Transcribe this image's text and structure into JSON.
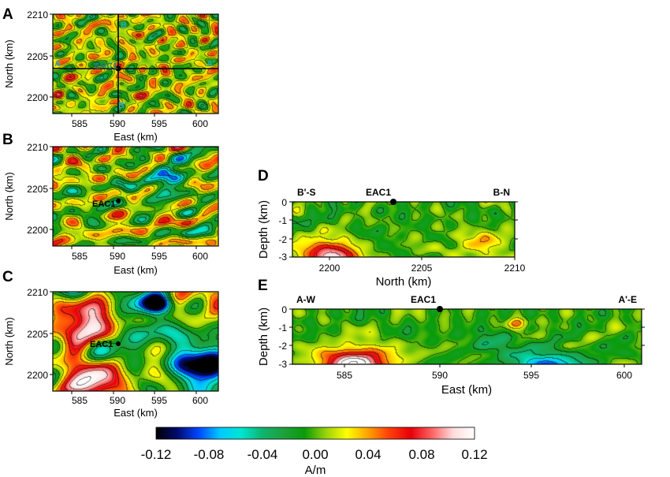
{
  "figure": {
    "panel_labels": [
      "A",
      "B",
      "C",
      "D",
      "E"
    ],
    "colorbar": {
      "unit": "A/m",
      "ticks": [
        "-0.12",
        "-0.08",
        "-0.04",
        "0.00",
        "0.04",
        "0.08",
        "0.12"
      ],
      "colors": [
        "#000000",
        "#000a6e",
        "#0046ff",
        "#00c8ff",
        "#00e6d2",
        "#0fb46e",
        "#1ea03c",
        "#0a9b0a",
        "#9ad20a",
        "#ffff00",
        "#ffa000",
        "#ff3c0a",
        "#e6000a",
        "#ff6464",
        "#ffdcdc",
        "#ffffff"
      ]
    }
  },
  "chart_data": [
    {
      "panel": "A",
      "type": "heatmap",
      "xlabel": "East (km)",
      "ylabel": "North (km)",
      "xlim": [
        582,
        602
      ],
      "ylim": [
        2198,
        2210
      ],
      "xticks": [
        "585",
        "590",
        "595",
        "600"
      ],
      "yticks": [
        "2200",
        "2205",
        "2210"
      ],
      "well": "EAC1",
      "profile_labels": {
        "a_start": "A",
        "a_end": "A'",
        "b_start": "B",
        "b_end": "B'"
      },
      "amplitude": 0.07
    },
    {
      "panel": "B",
      "type": "heatmap",
      "xlabel": "East (km)",
      "ylabel": "North (km)",
      "xlim": [
        582,
        602
      ],
      "ylim": [
        2198,
        2210
      ],
      "xticks": [
        "585",
        "590",
        "595",
        "600"
      ],
      "yticks": [
        "2200",
        "2205",
        "2210"
      ],
      "well": "EAC1",
      "amplitude": 0.085
    },
    {
      "panel": "C",
      "type": "heatmap",
      "xlabel": "East (km)",
      "ylabel": "North (km)",
      "xlim": [
        582,
        602
      ],
      "ylim": [
        2198,
        2210
      ],
      "xticks": [
        "585",
        "590",
        "595",
        "600"
      ],
      "yticks": [
        "2200",
        "2205",
        "2210"
      ],
      "well": "EAC1",
      "amplitude": 0.12
    },
    {
      "panel": "D",
      "type": "heatmap",
      "xlabel": "North (km)",
      "ylabel": "Depth (km)",
      "xlim": [
        2198,
        2210
      ],
      "ylim": [
        -3,
        0
      ],
      "xticks": [
        "2200",
        "2205",
        "2210"
      ],
      "yticks": [
        "0",
        "-1",
        "-2",
        "-3"
      ],
      "well": "EAC1",
      "well_x": 2203.5,
      "left_label": "B'-S",
      "right_label": "B-N"
    },
    {
      "panel": "E",
      "type": "heatmap",
      "xlabel": "East (km)",
      "ylabel": "Depth (km)",
      "xlim": [
        582,
        602
      ],
      "ylim": [
        -3,
        0
      ],
      "xticks": [
        "585",
        "590",
        "595",
        "600"
      ],
      "yticks": [
        "0",
        "-1",
        "-2",
        "-3"
      ],
      "well": "EAC1",
      "well_x": 590,
      "left_label": "A-W",
      "right_label": "A'-E"
    }
  ]
}
